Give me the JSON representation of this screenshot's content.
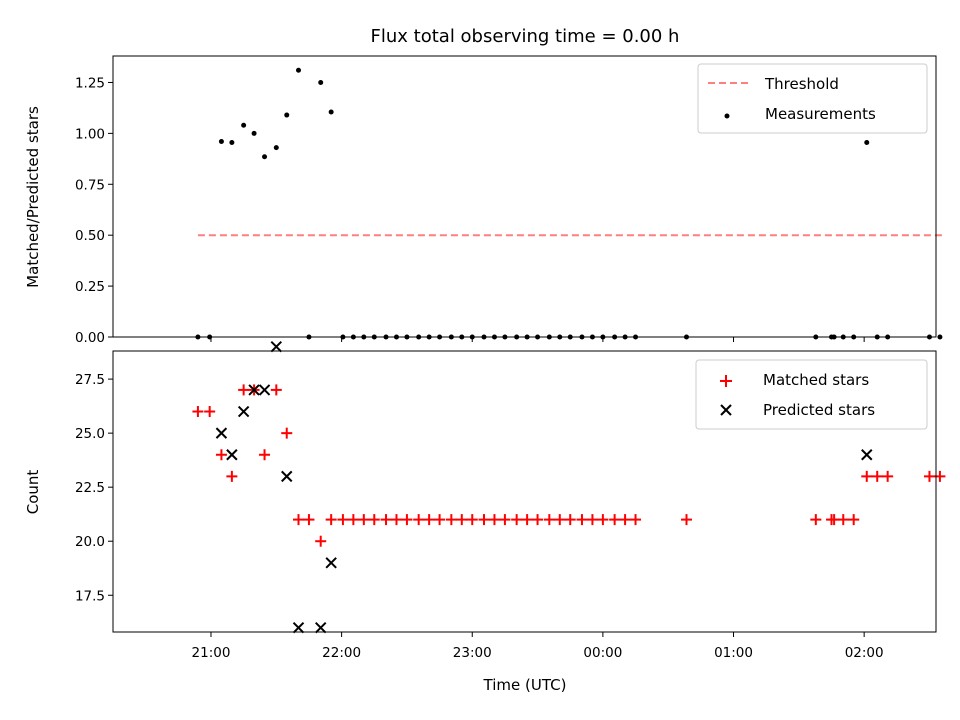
{
  "chart_data": {
    "title": "Flux total observing time = 0.00 h",
    "xlabel": "Time (UTC)",
    "x_unit": "hours after 21:00 UTC",
    "xlim": [
      -0.75,
      5.55
    ],
    "xticks": [
      {
        "x": 0,
        "label": "21:00"
      },
      {
        "x": 1,
        "label": "22:00"
      },
      {
        "x": 2,
        "label": "23:00"
      },
      {
        "x": 3,
        "label": "00:00"
      },
      {
        "x": 4,
        "label": "01:00"
      },
      {
        "x": 5,
        "label": "02:00"
      }
    ],
    "panels": [
      {
        "type": "scatter",
        "ylabel": "Matched/Predicted stars",
        "ylim": [
          0,
          1.38
        ],
        "yticks": [
          {
            "y": 0.0,
            "label": "0.00"
          },
          {
            "y": 0.25,
            "label": "0.25"
          },
          {
            "y": 0.5,
            "label": "0.50"
          },
          {
            "y": 0.75,
            "label": "0.75"
          },
          {
            "y": 1.0,
            "label": "1.00"
          },
          {
            "y": 1.25,
            "label": "1.25"
          }
        ],
        "legend": [
          "Threshold",
          "Measurements"
        ],
        "legend_loc": "upper right",
        "series": [
          {
            "name": "Threshold",
            "type": "line",
            "style": "dashed",
            "color": "#ff7f7f",
            "points": [
              [
                -0.1,
                0.5
              ],
              [
                5.6,
                0.5
              ]
            ]
          },
          {
            "name": "Measurements",
            "type": "scatter",
            "color": "#000000",
            "points": [
              [
                -0.1,
                0.0
              ],
              [
                -0.01,
                0.0
              ],
              [
                0.08,
                0.96
              ],
              [
                0.16,
                0.955
              ],
              [
                0.25,
                1.04
              ],
              [
                0.33,
                1.0
              ],
              [
                0.41,
                0.885
              ],
              [
                0.5,
                0.93
              ],
              [
                0.58,
                1.09
              ],
              [
                0.67,
                1.31
              ],
              [
                0.75,
                0.0
              ],
              [
                0.84,
                1.25
              ],
              [
                0.92,
                1.105
              ],
              [
                1.01,
                0.0
              ],
              [
                1.09,
                0.0
              ],
              [
                1.17,
                0.0
              ],
              [
                1.25,
                0.0
              ],
              [
                1.34,
                0.0
              ],
              [
                1.42,
                0.0
              ],
              [
                1.5,
                0.0
              ],
              [
                1.59,
                0.0
              ],
              [
                1.67,
                0.0
              ],
              [
                1.75,
                0.0
              ],
              [
                1.84,
                0.0
              ],
              [
                1.92,
                0.0
              ],
              [
                2.0,
                0.0
              ],
              [
                2.09,
                0.0
              ],
              [
                2.17,
                0.0
              ],
              [
                2.25,
                0.0
              ],
              [
                2.34,
                0.0
              ],
              [
                2.42,
                0.0
              ],
              [
                2.5,
                0.0
              ],
              [
                2.59,
                0.0
              ],
              [
                2.67,
                0.0
              ],
              [
                2.75,
                0.0
              ],
              [
                2.84,
                0.0
              ],
              [
                2.92,
                0.0
              ],
              [
                3.0,
                0.0
              ],
              [
                3.09,
                0.0
              ],
              [
                3.17,
                0.0
              ],
              [
                3.25,
                0.0
              ],
              [
                3.64,
                0.0
              ],
              [
                4.63,
                0.0
              ],
              [
                4.75,
                0.0
              ],
              [
                4.77,
                0.0
              ],
              [
                4.84,
                0.0
              ],
              [
                4.92,
                0.0
              ],
              [
                5.02,
                0.955
              ],
              [
                5.1,
                0.0
              ],
              [
                5.18,
                0.0
              ],
              [
                5.5,
                0.0
              ],
              [
                5.58,
                0.0
              ]
            ]
          }
        ]
      },
      {
        "type": "scatter",
        "ylabel": "Count",
        "ylim": [
          15.8,
          28.8
        ],
        "yticks": [
          {
            "y": 17.5,
            "label": "17.5"
          },
          {
            "y": 20.0,
            "label": "20.0"
          },
          {
            "y": 22.5,
            "label": "22.5"
          },
          {
            "y": 25.0,
            "label": "25.0"
          },
          {
            "y": 27.5,
            "label": "27.5"
          }
        ],
        "legend": [
          "Matched stars",
          "Predicted stars"
        ],
        "legend_loc": "upper right",
        "series": [
          {
            "name": "Matched stars",
            "marker": "plus",
            "color": "#ff0000",
            "points": [
              [
                -0.1,
                26
              ],
              [
                -0.01,
                26
              ],
              [
                0.08,
                24
              ],
              [
                0.16,
                23
              ],
              [
                0.25,
                27
              ],
              [
                0.33,
                27
              ],
              [
                0.41,
                24
              ],
              [
                0.5,
                27
              ],
              [
                0.58,
                25
              ],
              [
                0.67,
                21
              ],
              [
                0.75,
                21
              ],
              [
                0.84,
                20
              ],
              [
                0.92,
                21
              ],
              [
                1.01,
                21
              ],
              [
                1.09,
                21
              ],
              [
                1.17,
                21
              ],
              [
                1.25,
                21
              ],
              [
                1.34,
                21
              ],
              [
                1.42,
                21
              ],
              [
                1.5,
                21
              ],
              [
                1.59,
                21
              ],
              [
                1.67,
                21
              ],
              [
                1.75,
                21
              ],
              [
                1.84,
                21
              ],
              [
                1.92,
                21
              ],
              [
                2.0,
                21
              ],
              [
                2.09,
                21
              ],
              [
                2.17,
                21
              ],
              [
                2.25,
                21
              ],
              [
                2.34,
                21
              ],
              [
                2.42,
                21
              ],
              [
                2.5,
                21
              ],
              [
                2.59,
                21
              ],
              [
                2.67,
                21
              ],
              [
                2.75,
                21
              ],
              [
                2.84,
                21
              ],
              [
                2.92,
                21
              ],
              [
                3.0,
                21
              ],
              [
                3.09,
                21
              ],
              [
                3.17,
                21
              ],
              [
                3.25,
                21
              ],
              [
                3.64,
                21
              ],
              [
                4.63,
                21
              ],
              [
                4.75,
                21
              ],
              [
                4.77,
                21
              ],
              [
                4.84,
                21
              ],
              [
                4.92,
                21
              ],
              [
                5.02,
                23
              ],
              [
                5.1,
                23
              ],
              [
                5.18,
                23
              ],
              [
                5.5,
                23
              ],
              [
                5.58,
                23
              ]
            ]
          },
          {
            "name": "Predicted stars",
            "marker": "x",
            "color": "#000000",
            "points": [
              [
                0.08,
                25
              ],
              [
                0.16,
                24
              ],
              [
                0.25,
                26
              ],
              [
                0.33,
                27
              ],
              [
                0.41,
                27
              ],
              [
                0.5,
                29
              ],
              [
                0.58,
                23
              ],
              [
                0.67,
                16
              ],
              [
                0.84,
                16
              ],
              [
                0.92,
                19
              ],
              [
                5.02,
                24
              ]
            ]
          }
        ]
      }
    ]
  }
}
